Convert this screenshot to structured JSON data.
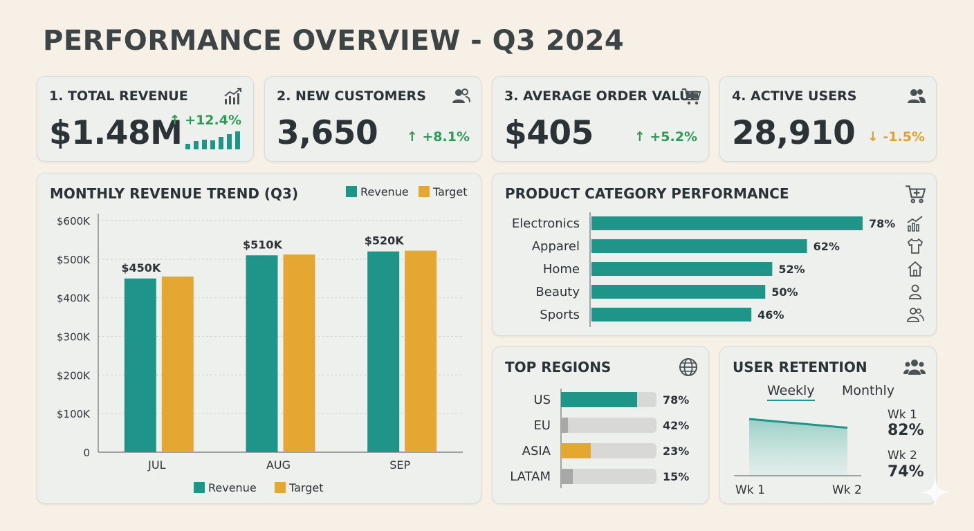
{
  "page_title": "PERFORMANCE OVERVIEW - Q3 2024",
  "colors": {
    "teal": "#1f9488",
    "gold": "#e3a732",
    "gray": "#a8a8a8",
    "up": "#2f9a55",
    "down": "#e0a030"
  },
  "kpis": [
    {
      "title": "1. TOTAL REVENUE",
      "value": "$1.48M",
      "delta": "↑ +12.4%",
      "direction": "up",
      "icon": "trend-chart-icon",
      "sparkline": [
        0.3,
        0.45,
        0.55,
        0.5,
        0.7,
        0.85,
        1.0
      ]
    },
    {
      "title": "2. NEW CUSTOMERS",
      "value": "3,650",
      "delta": "↑ +8.1%",
      "direction": "up",
      "icon": "users-icon"
    },
    {
      "title": "3. AVERAGE ORDER VALUE",
      "value": "$405",
      "delta": "↑ +5.2%",
      "direction": "up",
      "icon": "cart-icon"
    },
    {
      "title": "4. ACTIVE USERS",
      "value": "28,910",
      "delta": "↓ -1.5%",
      "direction": "down",
      "icon": "users-icon"
    }
  ],
  "revenue_trend": {
    "title": "MONTHLY REVENUE TREND (Q3)",
    "legend_top": [
      "Revenue",
      "Target"
    ],
    "legend_bottom": [
      "Revenue",
      "Target"
    ]
  },
  "product_categories": {
    "title": "PRODUCT CATEGORY PERFORMANCE",
    "icon": "cart-plus-icon",
    "items": [
      {
        "label": "Electronics",
        "value": 78,
        "display": "78%",
        "icon": "trend-chart-icon"
      },
      {
        "label": "Apparel",
        "value": 62,
        "display": "62%",
        "icon": "shirt-icon"
      },
      {
        "label": "Home",
        "value": 52,
        "display": "52%",
        "icon": "home-icon"
      },
      {
        "label": "Beauty",
        "value": 50,
        "display": "50%",
        "icon": "person-icon"
      },
      {
        "label": "Sports",
        "value": 46,
        "display": "46%",
        "icon": "users-icon"
      }
    ]
  },
  "top_regions": {
    "title": "TOP REGIONS",
    "icon": "globe-icon",
    "items": [
      {
        "label": "US",
        "value": 78,
        "display": "78%",
        "color": "#1f9488"
      },
      {
        "label": "EU",
        "value": 42,
        "display": "42%",
        "color": "#a8a8a8"
      },
      {
        "label": "ASIA",
        "value": 23,
        "display": "23%",
        "color": "#e3a732"
      },
      {
        "label": "LATAM",
        "value": 15,
        "display": "15%",
        "color": "#a8a8a8"
      }
    ]
  },
  "user_retention": {
    "title": "USER RETENTION",
    "icon": "group-icon",
    "tabs": [
      "Weekly",
      "Monthly"
    ],
    "active_tab": "Weekly",
    "x_labels": [
      "Wk 1",
      "Wk 2"
    ],
    "values": [
      82,
      74
    ],
    "stats": [
      {
        "label": "Wk 1",
        "value": "82%"
      },
      {
        "label": "Wk 2",
        "value": "74%"
      }
    ]
  },
  "chart_data": {
    "type": "bar",
    "title": "MONTHLY REVENUE TREND (Q3)",
    "categories": [
      "JUL",
      "AUG",
      "SEP"
    ],
    "series": [
      {
        "name": "Revenue",
        "values": [
          450,
          510,
          520
        ],
        "color": "#1f9488"
      },
      {
        "name": "Target",
        "values": [
          455,
          512,
          522
        ],
        "color": "#e3a732"
      }
    ],
    "data_labels": [
      "$450K",
      "$510K",
      "$520K"
    ],
    "yticks": [
      "0",
      "$100K",
      "$200K",
      "$300K",
      "$400K",
      "$500K",
      "$600K"
    ],
    "ylim": [
      0,
      600
    ],
    "grid": true,
    "legend_position": "top-right"
  }
}
